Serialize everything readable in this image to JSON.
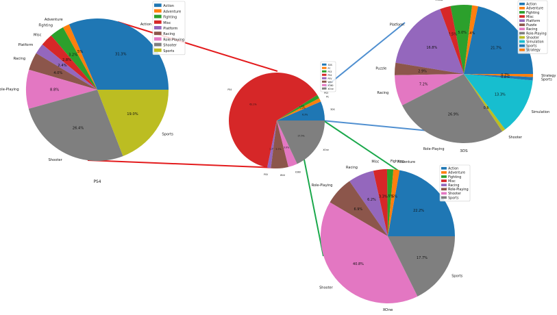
{
  "chart_data": [
    {
      "type": "pie",
      "title": "PS4",
      "categories": [
        "Action",
        "Adventure",
        "Fighting",
        "Misc",
        "Platform",
        "Racing",
        "Role-Playing",
        "Shooter",
        "Sports"
      ],
      "values": [
        31.3,
        1.5,
        3.2,
        2.8,
        2.4,
        4.0,
        8.8,
        26.4,
        19.0
      ],
      "labels": [
        "31.3%",
        "1.5%",
        "3.2%",
        "2.8%",
        "2.4%",
        "4.0%",
        "8.8%",
        "26.4%",
        "19.0%"
      ],
      "legend": [
        "Action",
        "Adventure",
        "Fighting",
        "Misc",
        "Platform",
        "Racing",
        "Role-Playing",
        "Shooter",
        "Sports"
      ],
      "legend_position": "top-right"
    },
    {
      "type": "pie",
      "title": "",
      "categories": [
        "3DS",
        "PC",
        "PS3",
        "PS4",
        "PSV",
        "WiiU",
        "X360",
        "XOne"
      ],
      "values": [
        6.3,
        1.2,
        1.2,
        61.1,
        1.2,
        5.7,
        3.0,
        17.5
      ],
      "labels": [
        "6.3%",
        "1.2%",
        "1.2%",
        "61.1%",
        "1.2%",
        "5.7%",
        "3.0%",
        "17.5%"
      ],
      "outer_labels": [
        "3DS",
        "PC",
        "PS3",
        "PS4",
        "PSV",
        "WiiU",
        "X360",
        "XOne"
      ],
      "legend": [
        "3DS",
        "PC",
        "PS3",
        "PS4",
        "PSV",
        "WiiU",
        "X360",
        "XOne"
      ],
      "legend_position": "top-right"
    },
    {
      "type": "pie",
      "title": "3DS",
      "categories": [
        "Action",
        "Adventure",
        "Fighting",
        "Misc",
        "Platform",
        "Puzzle",
        "Racing",
        "Role-Playing",
        "Shooter",
        "Simulation",
        "Sports",
        "Strategy"
      ],
      "values": [
        21.7,
        1.4,
        5.0,
        2.5,
        16.8,
        2.9,
        7.2,
        26.9,
        0.8,
        13.3,
        0.8,
        0.7
      ],
      "labels": [
        "21.7%",
        "1.4%",
        "5.0%",
        "2.5%",
        "16.8%",
        "2.9%",
        "7.2%",
        "26.9%",
        "0.8%",
        "13.3%",
        "0.8%",
        "0.7%"
      ],
      "legend": [
        "Action",
        "Adventure",
        "Fighting",
        "Misc",
        "Platform",
        "Puzzle",
        "Racing",
        "Role-Playing",
        "Shooter",
        "Simulation",
        "Sports",
        "Strategy"
      ],
      "legend_position": "top-right"
    },
    {
      "type": "pie",
      "title": "XOne",
      "categories": [
        "Action",
        "Adventure",
        "Fighting",
        "Misc",
        "Racing",
        "Role-Playing",
        "Shooter",
        "Sports"
      ],
      "values": [
        22.2,
        1.5,
        1.5,
        3.3,
        6.2,
        6.9,
        40.8,
        17.7
      ],
      "labels": [
        "22.2%",
        "1.5%",
        "1.5%",
        "3.3%",
        "6.2%",
        "6.9%",
        "40.8%",
        "17.7%"
      ],
      "legend": [
        "Action",
        "Adventure",
        "Fighting",
        "Misc",
        "Racing",
        "Role-Playing",
        "Shooter",
        "Sports"
      ],
      "legend_position": "top-right"
    }
  ],
  "colors": {
    "blue": "#1f77b4",
    "orange": "#ff7f0e",
    "green": "#2ca02c",
    "red": "#d62728",
    "purple": "#9467bd",
    "brown": "#8c564b",
    "pink": "#e377c2",
    "gray": "#7f7f7f",
    "olive": "#bcbd22",
    "cyan": "#17becf",
    "connector_ps4": "#e31a1c",
    "connector_3ds": "#4f8fd0",
    "connector_xone": "#1aa84b"
  }
}
